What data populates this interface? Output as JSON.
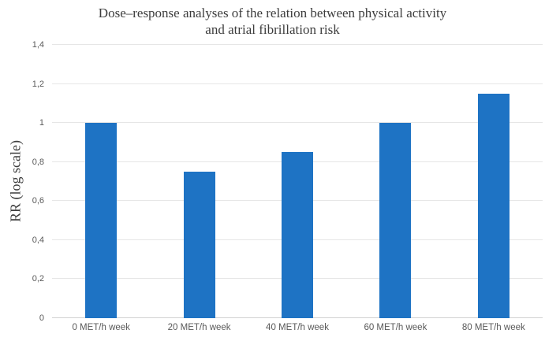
{
  "chart_data": {
    "type": "bar",
    "title": "Dose–response analyses of the relation between physical activity and atrial fibrillation risk",
    "title_lines": [
      "Dose–response analyses of the relation between physical activity",
      "and atrial fibrillation risk"
    ],
    "ylabel": "RR (log scale)",
    "xlabel": "",
    "categories": [
      "0 MET/h week",
      "20 MET/h week",
      "40 MET/h week",
      "60 MET/h week",
      "80 MET/h week"
    ],
    "values": [
      1.0,
      0.75,
      0.85,
      1.0,
      1.15
    ],
    "ylim": [
      0,
      1.4
    ],
    "ytick_step": 0.2,
    "ytick_labels": [
      "0",
      "0,2",
      "0,4",
      "0,6",
      "0,8",
      "1",
      "1,2",
      "1,4"
    ],
    "grid": true,
    "legend": "none",
    "colors": {
      "bar": "#1e73c4",
      "gridline": "#e6e6e6",
      "axis_line": "#d2d2d2",
      "tick_label": "#595959",
      "title": "#3d3d3d"
    }
  }
}
